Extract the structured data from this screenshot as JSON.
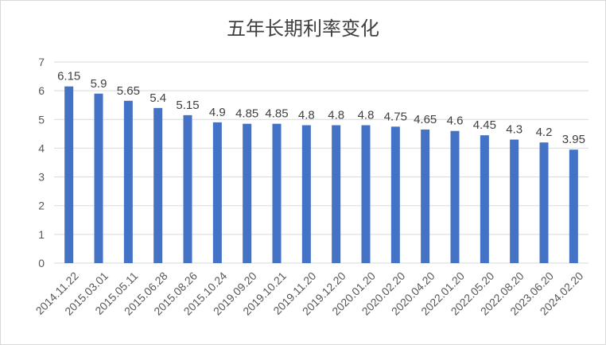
{
  "chart_data": {
    "type": "bar",
    "title": "五年长期利率变化",
    "categories": [
      "2014.11.22",
      "2015.03.01",
      "2015.05.11",
      "2015.06.28",
      "2015.08.26",
      "2015.10.24",
      "2019.09.20",
      "2019.10.21",
      "2019.11.20",
      "2019.12.20",
      "2020.01.20",
      "2020.02.20",
      "2020.04.20",
      "2022.01.20",
      "2022.05.20",
      "2022.08.20",
      "2023.06.20",
      "2024.02.20"
    ],
    "values": [
      6.15,
      5.9,
      5.65,
      5.4,
      5.15,
      4.9,
      4.85,
      4.85,
      4.8,
      4.8,
      4.8,
      4.75,
      4.65,
      4.6,
      4.45,
      4.3,
      4.2,
      3.95
    ],
    "data_labels": [
      "6.15",
      "5.9",
      "5.65",
      "5.4",
      "5.15",
      "4.9",
      "4.85",
      "4.85",
      "4.8",
      "4.8",
      "4.8",
      "4.75",
      "4.65",
      "4.6",
      "4.45",
      "4.3",
      "4.2",
      "3.95"
    ],
    "ylim": [
      0,
      7
    ],
    "yticks": [
      "0",
      "1",
      "2",
      "3",
      "4",
      "5",
      "6",
      "7"
    ],
    "grid": true,
    "bar_color": "#4472c4",
    "grid_color": "#d9d9d9"
  }
}
